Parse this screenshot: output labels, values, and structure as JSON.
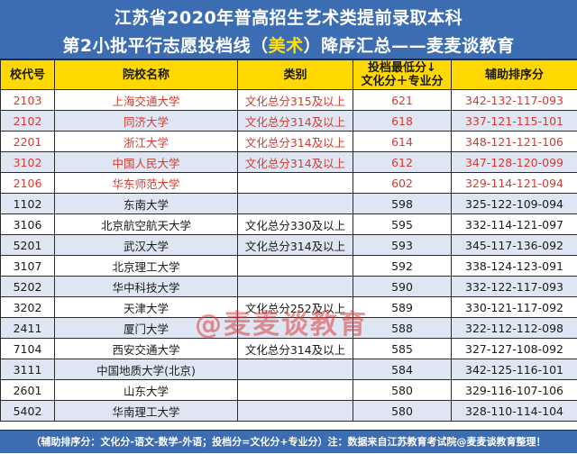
{
  "title": {
    "line1": "江苏省2020年普高招生艺术类提前录取本科",
    "line2_before": "第2小批平行志愿投档线（",
    "line2_highlight": "美术",
    "line2_after": "）降序汇总——麦麦谈教育"
  },
  "columns": {
    "code": "校代号",
    "name": "院校名称",
    "category": "类别",
    "score_line1": "投档最低分↓",
    "score_line2": "文化分＋专业分",
    "aux": "辅助排序分"
  },
  "rows": [
    {
      "code": "2103",
      "name": "上海交通大学",
      "category": "文化总分315及以上",
      "score": "621",
      "aux": "342-132-117-093",
      "highlight": true
    },
    {
      "code": "2102",
      "name": "同济大学",
      "category": "文化总分314及以上",
      "score": "618",
      "aux": "337-121-115-101",
      "highlight": true
    },
    {
      "code": "2201",
      "name": "浙江大学",
      "category": "文化总分314及以上",
      "score": "614",
      "aux": "348-121-121-106",
      "highlight": true
    },
    {
      "code": "3102",
      "name": "中国人民大学",
      "category": "文化总分314及以上",
      "score": "612",
      "aux": "347-128-120-099",
      "highlight": true
    },
    {
      "code": "2106",
      "name": "华东师范大学",
      "category": "",
      "score": "602",
      "aux": "329-114-121-094",
      "highlight": true
    },
    {
      "code": "1102",
      "name": "东南大学",
      "category": "",
      "score": "598",
      "aux": "325-122-109-094",
      "highlight": false
    },
    {
      "code": "3106",
      "name": "北京航空航天大学",
      "category": "文化总分330及以上",
      "score": "595",
      "aux": "332-114-121-097",
      "highlight": false
    },
    {
      "code": "5201",
      "name": "武汉大学",
      "category": "文化总分314及以上",
      "score": "593",
      "aux": "345-117-136-092",
      "highlight": false
    },
    {
      "code": "3107",
      "name": "北京理工大学",
      "category": "",
      "score": "592",
      "aux": "338-124-123-091",
      "highlight": false
    },
    {
      "code": "5202",
      "name": "华中科技大学",
      "category": "",
      "score": "590",
      "aux": "332-122-117-093",
      "highlight": false
    },
    {
      "code": "3202",
      "name": "天津大学",
      "category": "文化总分252及以上",
      "score": "589",
      "aux": "330-121-117-092",
      "highlight": false
    },
    {
      "code": "2411",
      "name": "厦门大学",
      "category": "",
      "score": "588",
      "aux": "322-112-112-098",
      "highlight": false
    },
    {
      "code": "7104",
      "name": "西安交通大学",
      "category": "文化总分314及以上",
      "score": "585",
      "aux": "327-127-108-092",
      "highlight": false
    },
    {
      "code": "3111",
      "name": "中国地质大学(北京)",
      "category": "",
      "score": "584",
      "aux": "342-125-116-101",
      "highlight": false
    },
    {
      "code": "2601",
      "name": "山东大学",
      "category": "",
      "score": "580",
      "aux": "329-116-107-106",
      "highlight": false
    },
    {
      "code": "5402",
      "name": "华南理工大学",
      "category": "",
      "score": "580",
      "aux": "328-110-114-104",
      "highlight": false
    }
  ],
  "watermark": "@麦麦谈教育",
  "footer": "（辅助排序分：文化分-语文-数学-外语；投档分=文化分+专业分）注：数据来自江苏教育考试院@麦麦谈教育整理！",
  "colors": {
    "banner": "#3c6db2",
    "header_row": "#ffd800",
    "highlight_text": "#d43a2f",
    "stripe": "#dfe6f3",
    "title_highlight": "#ffe300"
  }
}
